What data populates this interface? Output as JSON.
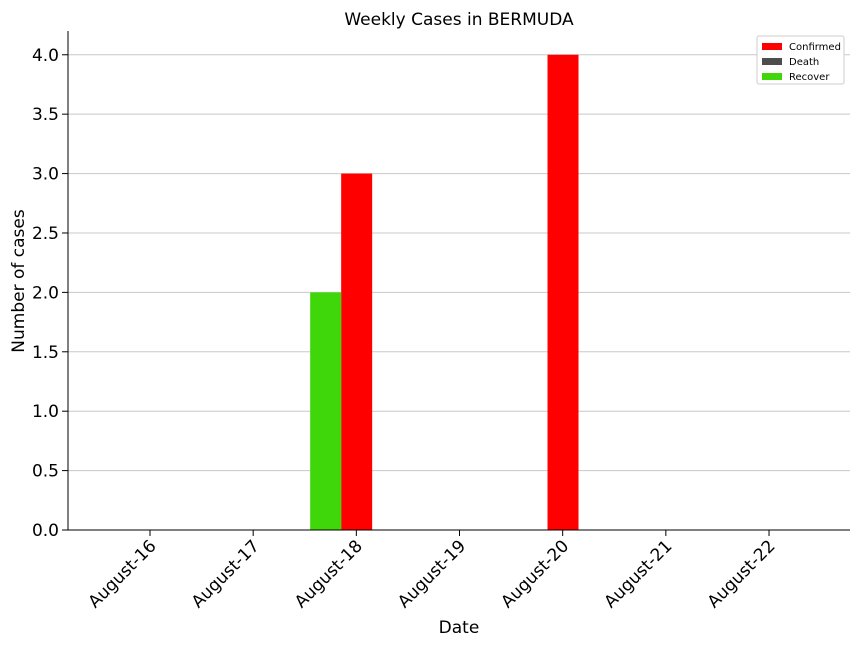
{
  "chart_data": {
    "type": "bar",
    "title": "Weekly Cases in BERMUDA",
    "xlabel": "Date",
    "ylabel": "Number of cases",
    "categories": [
      "August-16",
      "August-17",
      "August-18",
      "August-19",
      "August-20",
      "August-21",
      "August-22"
    ],
    "series": [
      {
        "name": "Confirmed",
        "color": "#ff0000",
        "values": [
          0,
          3,
          0,
          4,
          0,
          0,
          0
        ]
      },
      {
        "name": "Death",
        "color": "#4d4d4d",
        "values": [
          0,
          0,
          0,
          0,
          0,
          0,
          0
        ]
      },
      {
        "name": "Recover",
        "color": "#3fd70a",
        "values": [
          0,
          2,
          0,
          0,
          0,
          0,
          0
        ]
      }
    ],
    "ylim": [
      0,
      4.2
    ],
    "yticks": [
      "0.0",
      "0.5",
      "1.0",
      "1.5",
      "2.0",
      "2.5",
      "3.0",
      "3.5",
      "4.0"
    ],
    "grid": "horizontal",
    "legend_position": "top-right"
  }
}
